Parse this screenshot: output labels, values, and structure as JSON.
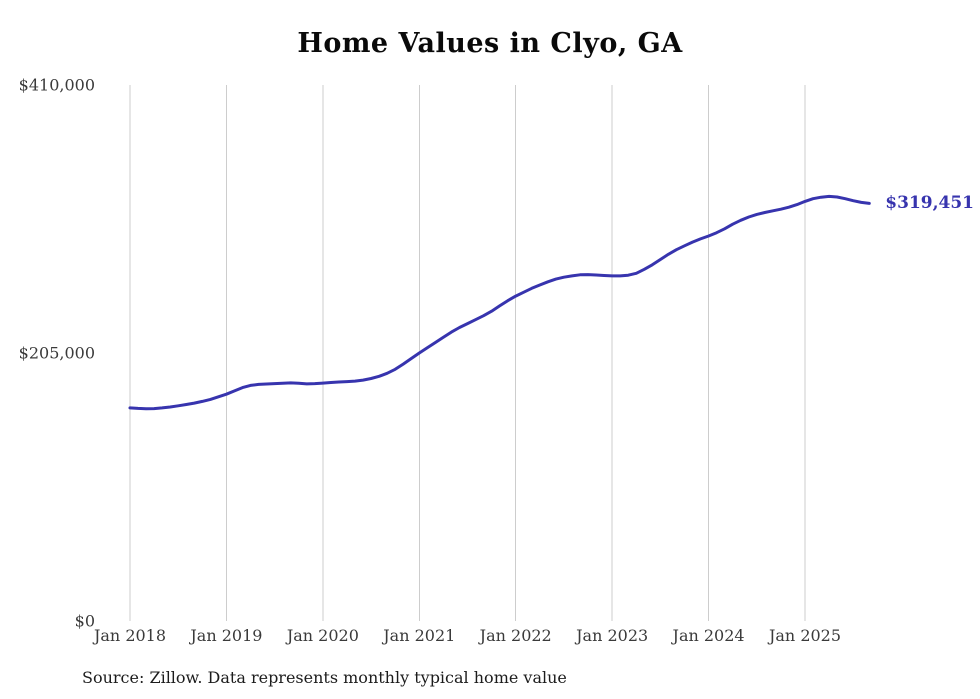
{
  "title": "Home Values in Clyo, GA",
  "source_note": "Source: Zillow. Data represents monthly typical home value",
  "end_label": "$319,451",
  "colors": {
    "line": "#3734ae",
    "grid": "#cdcdcd",
    "tick_text": "#3a3a3a"
  },
  "y_axis": {
    "ticks": [
      {
        "label": "$410,000",
        "value": 410000
      },
      {
        "label": "$205,000",
        "value": 205000
      },
      {
        "label": "$0",
        "value": 0
      }
    ]
  },
  "x_axis": {
    "ticks": [
      "Jan 2018",
      "Jan 2019",
      "Jan 2020",
      "Jan 2021",
      "Jan 2022",
      "Jan 2023",
      "Jan 2024",
      "Jan 2025"
    ]
  },
  "chart_data": {
    "type": "line",
    "title": "Home Values in Clyo, GA",
    "xlabel": "",
    "ylabel": "",
    "ylim": [
      0,
      410000
    ],
    "grid": "vertical-only",
    "legend": "none",
    "series_name": "Typical home value (monthly)",
    "x": [
      "2018-01",
      "2018-02",
      "2018-03",
      "2018-04",
      "2018-05",
      "2018-06",
      "2018-07",
      "2018-08",
      "2018-09",
      "2018-10",
      "2018-11",
      "2018-12",
      "2019-01",
      "2019-02",
      "2019-03",
      "2019-04",
      "2019-05",
      "2019-06",
      "2019-07",
      "2019-08",
      "2019-09",
      "2019-10",
      "2019-11",
      "2019-12",
      "2020-01",
      "2020-02",
      "2020-03",
      "2020-04",
      "2020-05",
      "2020-06",
      "2020-07",
      "2020-08",
      "2020-09",
      "2020-10",
      "2020-11",
      "2020-12",
      "2021-01",
      "2021-02",
      "2021-03",
      "2021-04",
      "2021-05",
      "2021-06",
      "2021-07",
      "2021-08",
      "2021-09",
      "2021-10",
      "2021-11",
      "2021-12",
      "2022-01",
      "2022-02",
      "2022-03",
      "2022-04",
      "2022-05",
      "2022-06",
      "2022-07",
      "2022-08",
      "2022-09",
      "2022-10",
      "2022-11",
      "2022-12",
      "2023-01",
      "2023-02",
      "2023-03",
      "2023-04",
      "2023-05",
      "2023-06",
      "2023-07",
      "2023-08",
      "2023-09",
      "2023-10",
      "2023-11",
      "2023-12",
      "2024-01",
      "2024-02",
      "2024-03",
      "2024-04",
      "2024-05",
      "2024-06",
      "2024-07",
      "2024-08",
      "2024-09",
      "2024-10",
      "2024-11",
      "2024-12",
      "2025-01",
      "2025-02",
      "2025-03",
      "2025-04",
      "2025-05",
      "2025-06",
      "2025-07",
      "2025-08",
      "2025-09"
    ],
    "values": [
      163000,
      162600,
      162400,
      162500,
      163000,
      163700,
      164600,
      165600,
      166700,
      168000,
      169500,
      171500,
      173500,
      176000,
      178500,
      180200,
      181000,
      181300,
      181600,
      181900,
      182100,
      181800,
      181400,
      181600,
      182000,
      182400,
      182800,
      183100,
      183500,
      184300,
      185500,
      187200,
      189500,
      192500,
      196500,
      200800,
      205000,
      209000,
      213000,
      217000,
      221000,
      224500,
      227500,
      230500,
      233500,
      237000,
      241000,
      245000,
      248500,
      251500,
      254500,
      257000,
      259500,
      261500,
      263000,
      264000,
      264800,
      265000,
      264700,
      264300,
      264000,
      264000,
      264500,
      266000,
      269000,
      272500,
      276500,
      280500,
      284000,
      287000,
      289800,
      292300,
      294500,
      297000,
      300000,
      303500,
      306500,
      309000,
      311000,
      312500,
      313800,
      315000,
      316500,
      318500,
      321000,
      323000,
      324200,
      324800,
      324300,
      323000,
      321500,
      320200,
      319451
    ],
    "last_value_label": "$319,451"
  }
}
